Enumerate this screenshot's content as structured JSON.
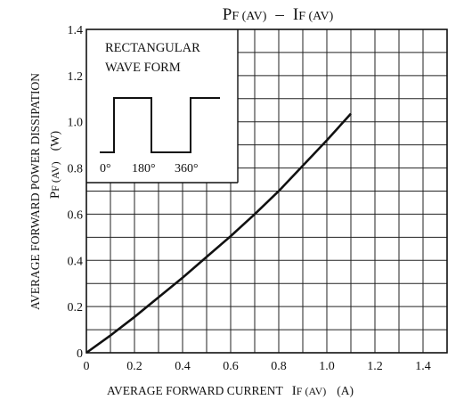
{
  "chart_data": {
    "type": "line",
    "title": "P",
    "title_sub": "F (AV)",
    "title_dash": "–",
    "title_2": "I",
    "title_2_sub": "F (AV)",
    "xlabel": "AVERAGE FORWARD CURRENT",
    "xlabel_symbol": "I",
    "xlabel_symbol_sub": "F (AV)",
    "xlabel_unit": "(A)",
    "ylabel_line1": "AVERAGE FORWARD POWER DISSIPATION",
    "ylabel_symbol": "P",
    "ylabel_symbol_sub": "F (AV)",
    "ylabel_unit": "(W)",
    "xlim": [
      0,
      1.5
    ],
    "ylim": [
      0,
      1.4
    ],
    "x_ticks": [
      0,
      0.2,
      0.4,
      0.6,
      0.8,
      1.0,
      1.2,
      1.4
    ],
    "x_tick_labels": [
      "0",
      "0.2",
      "0.4",
      "0.6",
      "0.8",
      "1.0",
      "1.2",
      "1.4"
    ],
    "y_ticks": [
      0,
      0.2,
      0.4,
      0.6,
      0.8,
      1.0,
      1.2,
      1.4
    ],
    "y_tick_labels": [
      "0",
      "0.2",
      "0.4",
      "0.6",
      "0.8",
      "1.0",
      "1.2",
      "1.4"
    ],
    "grid": true,
    "x_minor_step": 0.1,
    "y_minor_step": 0.1,
    "series": [
      {
        "x": [
          0,
          0.1,
          0.2,
          0.3,
          0.4,
          0.5,
          0.6,
          0.7,
          0.8,
          0.9,
          1.0,
          1.1
        ],
        "y": [
          0,
          0.075,
          0.155,
          0.24,
          0.325,
          0.415,
          0.505,
          0.6,
          0.7,
          0.81,
          0.92,
          1.035
        ]
      }
    ],
    "inset": {
      "line1": "RECTANGULAR",
      "line2": "WAVE FORM",
      "angle_labels": [
        "0°",
        "180°",
        "360°"
      ]
    }
  }
}
